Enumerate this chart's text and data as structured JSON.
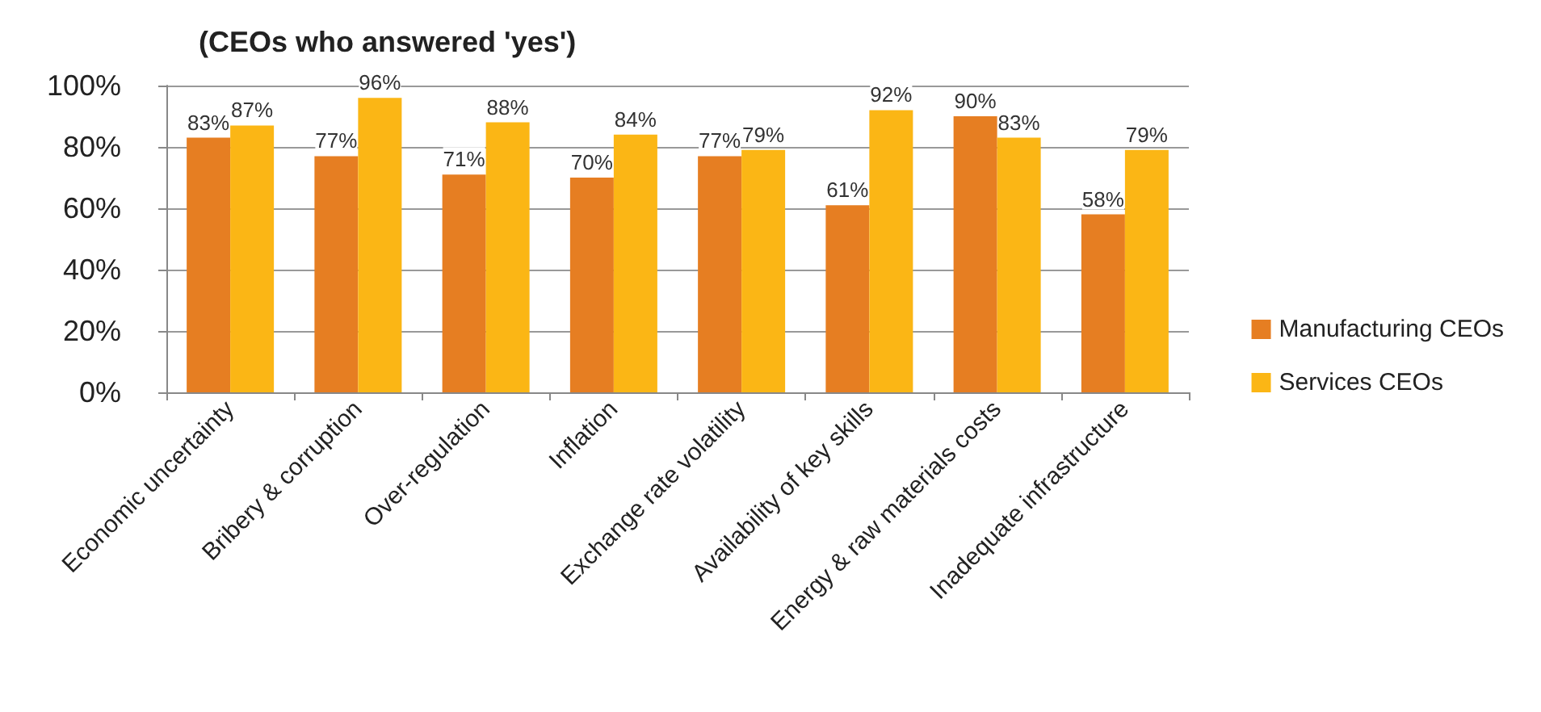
{
  "chart_data": {
    "type": "bar",
    "title": "(CEOs who answered 'yes')",
    "categories": [
      "Economic uncertainty",
      "Bribery & corruption",
      "Over-regulation",
      "Inflation",
      "Exchange rate volatility",
      "Availability of key skills",
      "Energy & raw materials costs",
      "Inadequate infrastructure"
    ],
    "series": [
      {
        "name": "Manufacturing CEOs",
        "color": "#e67e22",
        "values": [
          83,
          77,
          71,
          70,
          77,
          61,
          90,
          58
        ],
        "value_labels": [
          "83%",
          "77%",
          "71%",
          "70%",
          "77%",
          "61%",
          "90%",
          "58%"
        ]
      },
      {
        "name": "Services CEOs",
        "color": "#fbb615",
        "values": [
          87,
          96,
          88,
          84,
          79,
          92,
          83,
          79
        ],
        "value_labels": [
          "87%",
          "96%",
          "88%",
          "84%",
          "79%",
          "92%",
          "83%",
          "79%"
        ]
      }
    ],
    "ylim": [
      0,
      100
    ],
    "yticks": [
      {
        "value": 0,
        "label": "0%"
      },
      {
        "value": 20,
        "label": "20%"
      },
      {
        "value": 40,
        "label": "40%"
      },
      {
        "value": 60,
        "label": "60%"
      },
      {
        "value": 80,
        "label": "80%"
      },
      {
        "value": 100,
        "label": "100%"
      }
    ],
    "grid": "y",
    "legend": "right"
  }
}
